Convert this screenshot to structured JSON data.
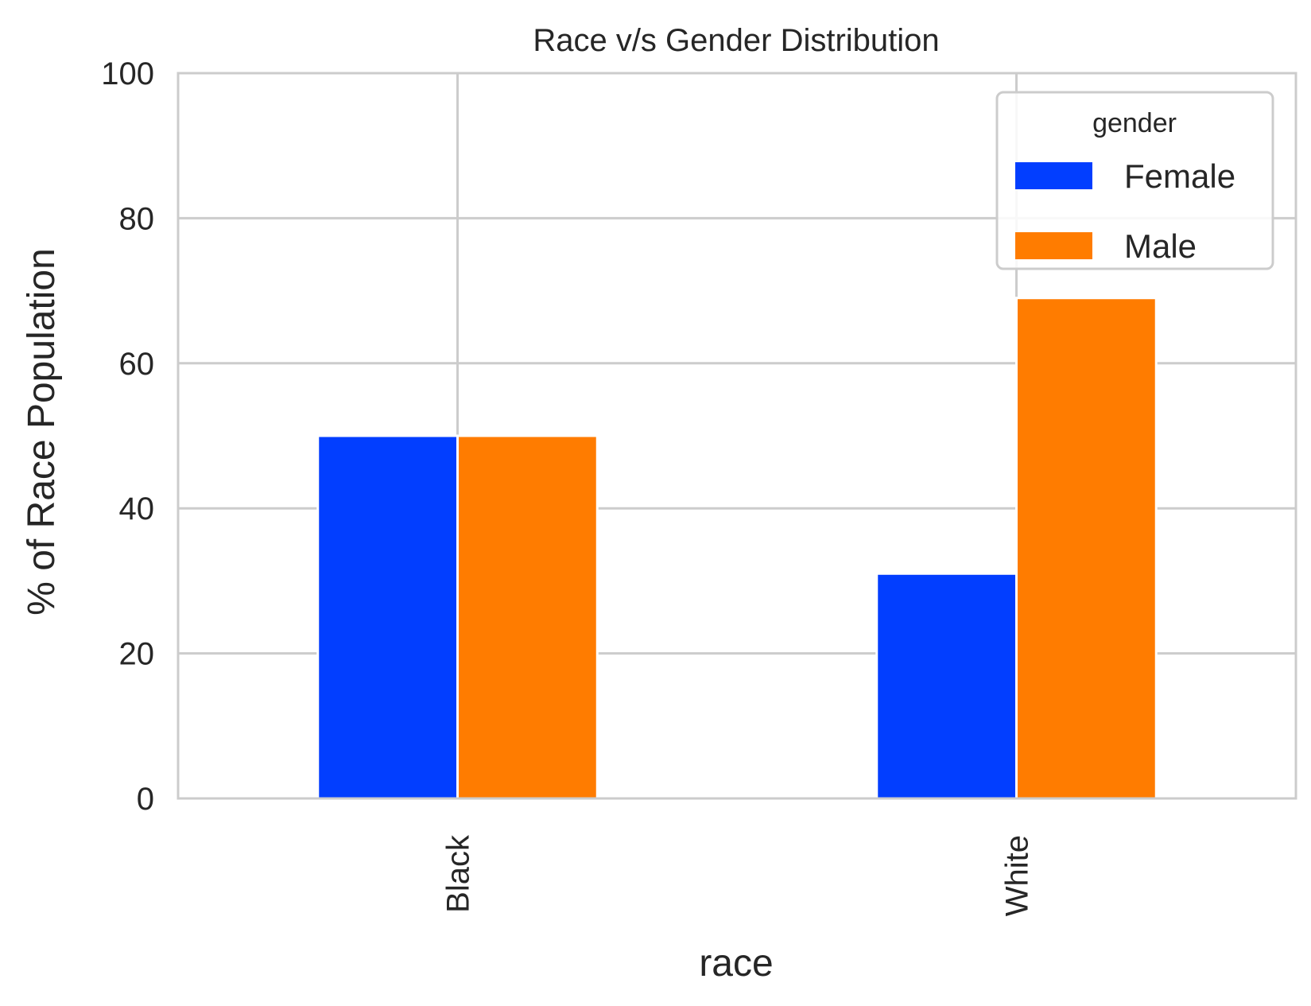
{
  "chart_data": {
    "type": "bar",
    "title": "Race v/s Gender Distribution",
    "xlabel": "race",
    "ylabel": "% of Race Population",
    "categories": [
      "Black",
      "White"
    ],
    "series": [
      {
        "name": "Female",
        "values": [
          50,
          31
        ],
        "color": "#023eff"
      },
      {
        "name": "Male",
        "values": [
          50,
          69
        ],
        "color": "#ff7c00"
      }
    ],
    "ylim": [
      0,
      100
    ],
    "yticks": [
      0,
      20,
      40,
      60,
      80,
      100
    ],
    "ytick_labels": [
      "0",
      "20",
      "40",
      "60",
      "80",
      "100"
    ],
    "grid": true,
    "legend": {
      "title": "gender",
      "position": "top-right"
    }
  },
  "colors": {
    "grid": "#cccccc",
    "axis_frame": "#cccccc",
    "text": "#262626",
    "background": "#ffffff"
  }
}
